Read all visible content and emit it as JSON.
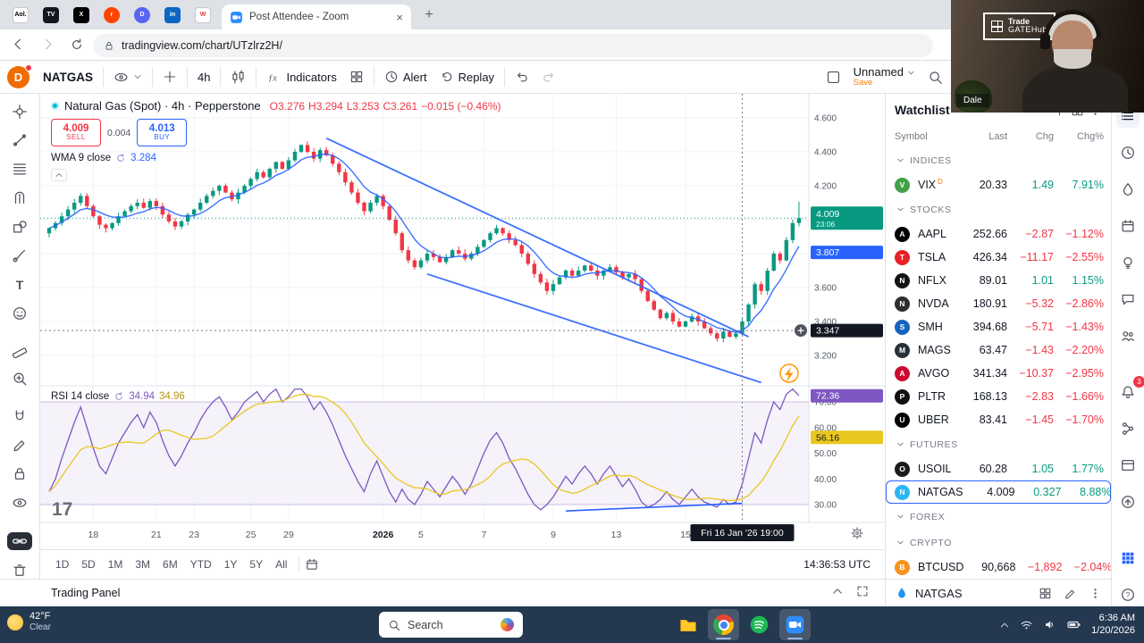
{
  "browser": {
    "pinned": [
      {
        "name": "aol",
        "glyph": "Aol.",
        "bg": "#ffffff",
        "fg": "#000000",
        "shape": "square"
      },
      {
        "name": "tradingview",
        "glyph": "TV",
        "bg": "#131722",
        "fg": "#ffffff",
        "shape": "square"
      },
      {
        "name": "x",
        "glyph": "X",
        "bg": "#000000",
        "fg": "#ffffff",
        "shape": "square"
      },
      {
        "name": "reddit",
        "glyph": "r",
        "bg": "#ff4500",
        "fg": "#ffffff",
        "shape": "circle"
      },
      {
        "name": "discord",
        "glyph": "D",
        "bg": "#5865f2",
        "fg": "#ffffff",
        "shape": "circle"
      },
      {
        "name": "linkedin",
        "glyph": "in",
        "bg": "#0a66c2",
        "fg": "#ffffff",
        "shape": "square"
      },
      {
        "name": "webull",
        "glyph": "W",
        "bg": "#ffffff",
        "fg": "#e53935",
        "shape": "square"
      }
    ],
    "zoom_tab_label": "Post Attendee - Zoom",
    "url": "tradingview.com/chart/UTzlrz2H/"
  },
  "toolbar": {
    "avatar": "D",
    "symbol": "NATGAS",
    "interval": "4h",
    "indicators": "Indicators",
    "alert": "Alert",
    "replay": "Replay",
    "layout_name": "Unnamed",
    "save": "Save"
  },
  "legend": {
    "title": "Natural Gas (Spot) · 4h · Pepperstone",
    "ohlc": {
      "o": "O3.276",
      "h": "H3.294",
      "l": "L3.253",
      "c": "C3.261",
      "chg": "−0.015 (−0.46%)"
    },
    "sell_price": "4.009",
    "sell_label": "SELL",
    "spread": "0.004",
    "buy_price": "4.013",
    "buy_label": "BUY",
    "wma_name": "WMA 9 close",
    "wma_value": "3.284",
    "rsi_name": "RSI 14 close",
    "rsi_v1": "34.94",
    "rsi_v2": "34.96"
  },
  "watchlist": {
    "title": "Watchlist",
    "columns": [
      "Symbol",
      "Last",
      "Chg",
      "Chg%"
    ],
    "groups": [
      {
        "section": "INDICES",
        "rows": [
          {
            "sym": "VIX",
            "tag": "D",
            "last": "20.33",
            "chg": "1.49",
            "chgp": "7.91%",
            "dir": "up",
            "bg": "#43a047",
            "g": "V"
          }
        ]
      },
      {
        "section": "STOCKS",
        "rows": [
          {
            "sym": "AAPL",
            "last": "252.66",
            "chg": "−2.87",
            "chgp": "−1.12%",
            "dir": "down",
            "bg": "#000000",
            "g": "A"
          },
          {
            "sym": "TSLA",
            "last": "426.34",
            "chg": "−11.17",
            "chgp": "−2.55%",
            "dir": "down",
            "bg": "#e82127",
            "g": "T"
          },
          {
            "sym": "NFLX",
            "last": "89.01",
            "chg": "1.01",
            "chgp": "1.15%",
            "dir": "up",
            "bg": "#141414",
            "g": "N"
          },
          {
            "sym": "NVDA",
            "last": "180.91",
            "chg": "−5.32",
            "chgp": "−2.86%",
            "dir": "down",
            "bg": "#2e2e2e",
            "g": "N"
          },
          {
            "sym": "SMH",
            "last": "394.68",
            "chg": "−5.71",
            "chgp": "−1.43%",
            "dir": "down",
            "bg": "#1565c0",
            "g": "S"
          },
          {
            "sym": "MAGS",
            "last": "63.47",
            "chg": "−1.43",
            "chgp": "−2.20%",
            "dir": "down",
            "bg": "#263238",
            "g": "M"
          },
          {
            "sym": "AVGO",
            "last": "341.34",
            "chg": "−10.37",
            "chgp": "−2.95%",
            "dir": "down",
            "bg": "#cc092f",
            "g": "A"
          },
          {
            "sym": "PLTR",
            "last": "168.13",
            "chg": "−2.83",
            "chgp": "−1.66%",
            "dir": "down",
            "bg": "#101010",
            "g": "P"
          },
          {
            "sym": "UBER",
            "last": "83.41",
            "chg": "−1.45",
            "chgp": "−1.70%",
            "dir": "down",
            "bg": "#000000",
            "g": "U"
          }
        ]
      },
      {
        "section": "FUTURES",
        "rows": [
          {
            "sym": "USOIL",
            "last": "60.28",
            "chg": "1.05",
            "chgp": "1.77%",
            "dir": "up",
            "bg": "#1b1b1b",
            "g": "O"
          },
          {
            "sym": "NATGAS",
            "last": "4.009",
            "chg": "0.327",
            "chgp": "8.88%",
            "dir": "up",
            "bg": "#29b6f6",
            "g": "N",
            "selected": true
          }
        ]
      },
      {
        "section": "FOREX",
        "rows": []
      },
      {
        "section": "CRYPTO",
        "rows": [
          {
            "sym": "BTCUSD",
            "last": "90,668",
            "chg": "−1,892",
            "chgp": "−2.04%",
            "dir": "down",
            "bg": "#f7931a",
            "g": "B"
          }
        ]
      }
    ]
  },
  "bottom": {
    "ranges": [
      "1D",
      "5D",
      "1M",
      "3M",
      "6M",
      "YTD",
      "1Y",
      "5Y",
      "All"
    ],
    "clock": "14:36:53 UTC"
  },
  "trading_panel": {
    "label": "Trading Panel"
  },
  "widgetbar": {
    "symbol": "NATGAS"
  },
  "taskbar": {
    "temp": "42°F",
    "cond": "Clear",
    "search": "Search",
    "time": "6:36 AM",
    "date": "1/20/2026"
  },
  "webcam": {
    "name": "Dale",
    "logo1": "Trade",
    "logo2": "GATEHub"
  },
  "chart_data": {
    "type": "candlestick_with_rsi",
    "title": "Natural Gas (Spot) · 4h · Pepperstone",
    "ylim": [
      3.1,
      4.65
    ],
    "rsi_lim": [
      20,
      80
    ],
    "price_ticks": [
      4.6,
      4.4,
      4.2,
      4.0,
      3.8,
      3.6,
      3.4,
      3.2
    ],
    "rsi_ticks": [
      70,
      60,
      50,
      40,
      30
    ],
    "time_ticks": [
      {
        "i": 7,
        "t": "18"
      },
      {
        "i": 17,
        "t": "21"
      },
      {
        "i": 23,
        "t": "23"
      },
      {
        "i": 32,
        "t": "25"
      },
      {
        "i": 38,
        "t": "29"
      },
      {
        "i": 53,
        "t": "2026",
        "major": true
      },
      {
        "i": 59,
        "t": "5"
      },
      {
        "i": 69,
        "t": "7"
      },
      {
        "i": 80,
        "t": "9"
      },
      {
        "i": 90,
        "t": "13"
      },
      {
        "i": 101,
        "t": "15"
      }
    ],
    "closes": [
      3.95,
      3.98,
      4.02,
      4.06,
      4.1,
      4.14,
      4.08,
      4.02,
      3.97,
      3.95,
      3.98,
      4.02,
      4.05,
      4.08,
      4.1,
      4.07,
      4.11,
      4.08,
      4.03,
      3.99,
      3.96,
      3.99,
      4.03,
      4.06,
      4.1,
      4.14,
      4.17,
      4.2,
      4.16,
      4.12,
      4.16,
      4.2,
      4.24,
      4.28,
      4.25,
      4.3,
      4.34,
      4.3,
      4.35,
      4.4,
      4.44,
      4.4,
      4.36,
      4.41,
      4.38,
      4.33,
      4.28,
      4.22,
      4.16,
      4.1,
      4.05,
      4.1,
      4.14,
      4.08,
      4.0,
      3.92,
      3.82,
      3.76,
      3.72,
      3.76,
      3.8,
      3.78,
      3.75,
      3.78,
      3.82,
      3.8,
      3.77,
      3.8,
      3.84,
      3.88,
      3.92,
      3.95,
      3.92,
      3.88,
      3.85,
      3.8,
      3.74,
      3.68,
      3.63,
      3.58,
      3.62,
      3.66,
      3.7,
      3.67,
      3.7,
      3.73,
      3.7,
      3.67,
      3.7,
      3.72,
      3.69,
      3.66,
      3.68,
      3.65,
      3.58,
      3.52,
      3.47,
      3.42,
      3.45,
      3.4,
      3.37,
      3.4,
      3.43,
      3.4,
      3.36,
      3.33,
      3.3,
      3.34,
      3.31,
      3.33,
      3.4,
      3.5,
      3.62,
      3.58,
      3.7,
      3.8,
      3.76,
      3.88,
      3.98,
      4.01
    ],
    "rsi": [
      35,
      40,
      48,
      55,
      62,
      68,
      60,
      52,
      45,
      42,
      48,
      54,
      58,
      62,
      65,
      60,
      66,
      62,
      55,
      49,
      45,
      49,
      54,
      58,
      63,
      67,
      70,
      72,
      68,
      63,
      66,
      70,
      72,
      74,
      70,
      73,
      75,
      70,
      72,
      75,
      75,
      72,
      67,
      70,
      66,
      61,
      55,
      49,
      44,
      39,
      35,
      42,
      47,
      41,
      35,
      31,
      36,
      32,
      30,
      34,
      39,
      36,
      33,
      37,
      41,
      38,
      34,
      38,
      44,
      50,
      55,
      58,
      54,
      48,
      44,
      39,
      34,
      30,
      28,
      30,
      33,
      37,
      41,
      38,
      42,
      45,
      42,
      38,
      42,
      45,
      41,
      37,
      40,
      36,
      31,
      29,
      30,
      32,
      35,
      32,
      30,
      33,
      36,
      33,
      31,
      30,
      29,
      32,
      30,
      31,
      38,
      48,
      58,
      54,
      63,
      70,
      67,
      73,
      75,
      72.4
    ],
    "trendlines": [
      {
        "i1": 44,
        "p1": 4.48,
        "i2": 111,
        "p2": 3.31
      },
      {
        "i1": 60,
        "p1": 3.68,
        "i2": 113,
        "p2": 3.04
      }
    ],
    "rsi_trendline": {
      "i1": 82,
      "r1": 27.5,
      "i2": 110,
      "r2": 30.5
    },
    "crosshair": {
      "i": 110,
      "price": 3.347,
      "time": "Fri 16 Jan '26  19:00"
    },
    "axis_labels": {
      "last": "4.009",
      "countdown": "23:06",
      "wma": "3.807",
      "cross": "3.347",
      "rsi": "72.36",
      "rsi_ma": "56.16"
    },
    "colors": {
      "up": "#089981",
      "down": "#F23645",
      "wma": "#2962FF",
      "rsi": "#7E57C2",
      "rsi_ma": "#E8C71F",
      "trend": "#2962FF"
    }
  }
}
